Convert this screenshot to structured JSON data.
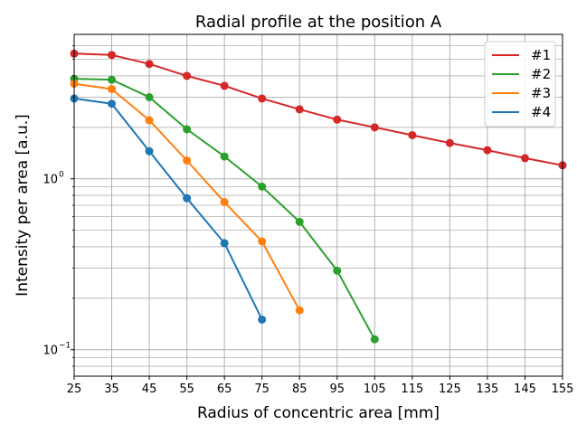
{
  "chart_data": {
    "type": "line",
    "title": "Radial profile at the position A",
    "xlabel": "Radius of concentric area [mm]",
    "ylabel": "Intensity per area [a.u.]",
    "xlim": [
      25,
      155
    ],
    "ylim": [
      0.07,
      7.0
    ],
    "yscale": "log",
    "grid": true,
    "legend_position": "top-right",
    "x_ticks": [
      25,
      35,
      45,
      55,
      65,
      75,
      85,
      95,
      105,
      115,
      125,
      135,
      145,
      155
    ],
    "y_major_ticks": [
      {
        "value": 0.1,
        "base": "10",
        "exp": "−1"
      },
      {
        "value": 1,
        "base": "10",
        "exp": "0"
      }
    ],
    "y_minor_ticks": [
      0.08,
      0.09,
      0.2,
      0.3,
      0.4,
      0.5,
      0.6,
      0.7,
      0.8,
      0.9,
      2,
      3,
      4,
      5,
      6
    ],
    "series": [
      {
        "name": "#1",
        "color": "#d62728",
        "x": [
          25,
          35,
          45,
          55,
          65,
          75,
          85,
          95,
          105,
          115,
          125,
          135,
          145,
          155
        ],
        "y": [
          5.4,
          5.3,
          4.7,
          4.0,
          3.5,
          2.95,
          2.55,
          2.22,
          2.0,
          1.8,
          1.62,
          1.47,
          1.32,
          1.2
        ]
      },
      {
        "name": "#2",
        "color": "#2ca02c",
        "x": [
          25,
          35,
          45,
          55,
          65,
          75,
          85,
          95,
          105
        ],
        "y": [
          3.85,
          3.8,
          3.0,
          1.95,
          1.35,
          0.9,
          0.56,
          0.29,
          0.115
        ]
      },
      {
        "name": "#3",
        "color": "#ff7f0e",
        "x": [
          25,
          35,
          45,
          55,
          65,
          75,
          85
        ],
        "y": [
          3.6,
          3.35,
          2.2,
          1.28,
          0.73,
          0.43,
          0.17
        ]
      },
      {
        "name": "#4",
        "color": "#1f77b4",
        "x": [
          25,
          35,
          45,
          55,
          65,
          75
        ],
        "y": [
          2.95,
          2.75,
          1.45,
          0.77,
          0.42,
          0.15
        ]
      }
    ]
  }
}
